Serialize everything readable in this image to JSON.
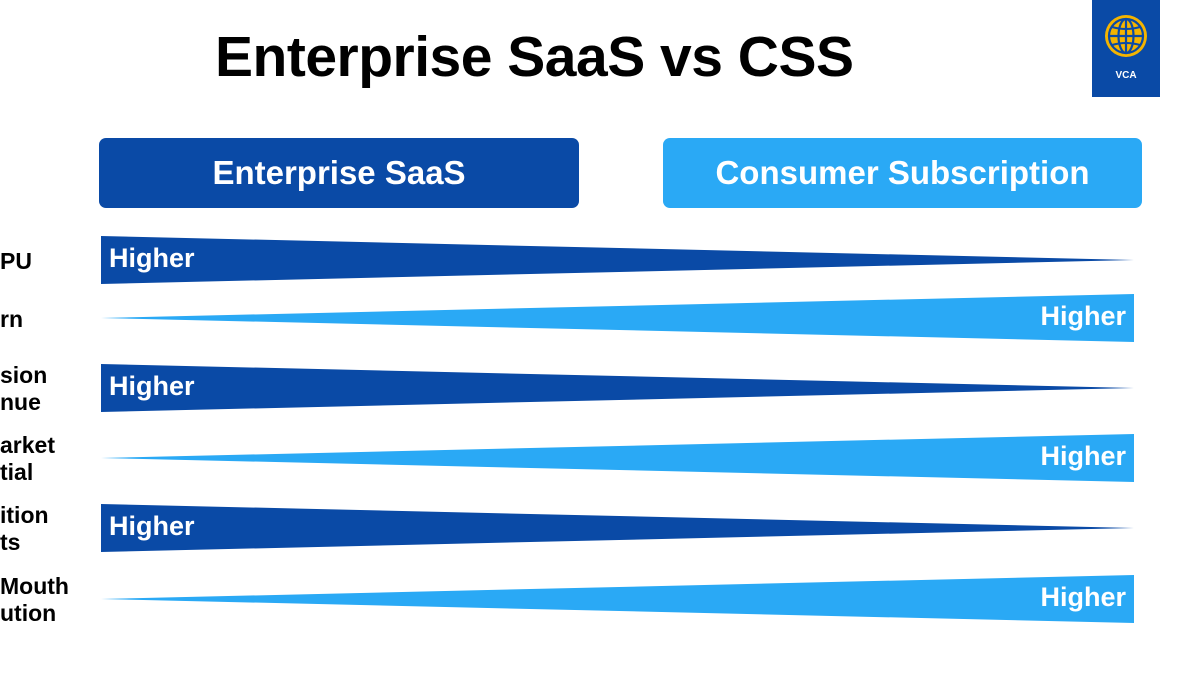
{
  "title": "Enterprise SaaS vs CSS",
  "logo": {
    "text": "VCA",
    "icon": "globe-icon"
  },
  "columns": [
    {
      "label": "Enterprise SaaS",
      "color": "#0a4aa6"
    },
    {
      "label": "Consumer Subscription",
      "color": "#2aa9f5"
    }
  ],
  "rows": [
    {
      "label_lines": [
        "PU"
      ],
      "higher": "Enterprise SaaS",
      "higher_label": "Higher"
    },
    {
      "label_lines": [
        "rn"
      ],
      "higher": "Consumer Subscription",
      "higher_label": "Higher"
    },
    {
      "label_lines": [
        "sion",
        "nue"
      ],
      "higher": "Enterprise SaaS",
      "higher_label": "Higher"
    },
    {
      "label_lines": [
        "arket",
        "tial"
      ],
      "higher": "Consumer Subscription",
      "higher_label": "Higher"
    },
    {
      "label_lines": [
        "ition",
        "ts"
      ],
      "higher": "Enterprise SaaS",
      "higher_label": "Higher"
    },
    {
      "label_lines": [
        "Mouth",
        "ution"
      ],
      "higher": "Consumer Subscription",
      "higher_label": "Higher"
    }
  ]
}
